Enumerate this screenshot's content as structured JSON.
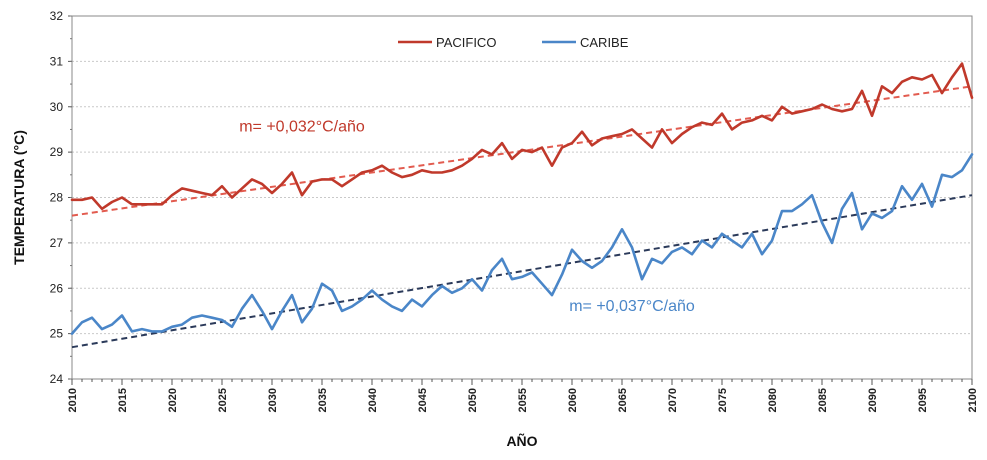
{
  "chart_data": {
    "type": "line",
    "xlabel": "AÑO",
    "ylabel": "TEMPERATURA (°C)",
    "xlim": [
      2010,
      2100
    ],
    "ylim": [
      24,
      32
    ],
    "y_ticks": [
      24,
      25,
      26,
      27,
      28,
      29,
      30,
      31,
      32
    ],
    "x_ticks": [
      2010,
      2015,
      2020,
      2025,
      2030,
      2035,
      2040,
      2045,
      2050,
      2055,
      2060,
      2065,
      2070,
      2075,
      2080,
      2085,
      2090,
      2095,
      2100
    ],
    "grid": true,
    "legend_position": "top-center",
    "series": [
      {
        "name": "PACIFICO",
        "color": "#c0392b",
        "x": [
          2010,
          2011,
          2012,
          2013,
          2014,
          2015,
          2016,
          2017,
          2018,
          2019,
          2020,
          2021,
          2022,
          2023,
          2024,
          2025,
          2026,
          2027,
          2028,
          2029,
          2030,
          2031,
          2032,
          2033,
          2034,
          2035,
          2036,
          2037,
          2038,
          2039,
          2040,
          2041,
          2042,
          2043,
          2044,
          2045,
          2046,
          2047,
          2048,
          2049,
          2050,
          2051,
          2052,
          2053,
          2054,
          2055,
          2056,
          2057,
          2058,
          2059,
          2060,
          2061,
          2062,
          2063,
          2064,
          2065,
          2066,
          2067,
          2068,
          2069,
          2070,
          2071,
          2072,
          2073,
          2074,
          2075,
          2076,
          2077,
          2078,
          2079,
          2080,
          2081,
          2082,
          2083,
          2084,
          2085,
          2086,
          2087,
          2088,
          2089,
          2090,
          2091,
          2092,
          2093,
          2094,
          2095,
          2096,
          2097,
          2098,
          2099,
          2100
        ],
        "y": [
          27.95,
          27.95,
          28.0,
          27.75,
          27.9,
          28.0,
          27.85,
          27.85,
          27.85,
          27.85,
          28.05,
          28.2,
          28.15,
          28.1,
          28.05,
          28.25,
          28.0,
          28.2,
          28.4,
          28.3,
          28.1,
          28.3,
          28.55,
          28.05,
          28.35,
          28.4,
          28.4,
          28.25,
          28.4,
          28.55,
          28.6,
          28.7,
          28.55,
          28.45,
          28.5,
          28.6,
          28.55,
          28.55,
          28.6,
          28.7,
          28.85,
          29.05,
          28.95,
          29.2,
          28.85,
          29.05,
          29.0,
          29.1,
          28.7,
          29.1,
          29.2,
          29.45,
          29.15,
          29.3,
          29.35,
          29.4,
          29.5,
          29.3,
          29.1,
          29.5,
          29.2,
          29.4,
          29.55,
          29.65,
          29.6,
          29.85,
          29.5,
          29.65,
          29.7,
          29.8,
          29.7,
          30.0,
          29.85,
          29.9,
          29.95,
          30.05,
          29.95,
          29.9,
          29.95,
          30.35,
          29.8,
          30.45,
          30.3,
          30.55,
          30.65,
          30.6,
          30.7,
          30.3,
          30.65,
          30.95,
          30.2
        ]
      },
      {
        "name": "CARIBE",
        "color": "#4a86c8",
        "x": [
          2010,
          2011,
          2012,
          2013,
          2014,
          2015,
          2016,
          2017,
          2018,
          2019,
          2020,
          2021,
          2022,
          2023,
          2024,
          2025,
          2026,
          2027,
          2028,
          2029,
          2030,
          2031,
          2032,
          2033,
          2034,
          2035,
          2036,
          2037,
          2038,
          2039,
          2040,
          2041,
          2042,
          2043,
          2044,
          2045,
          2046,
          2047,
          2048,
          2049,
          2050,
          2051,
          2052,
          2053,
          2054,
          2055,
          2056,
          2057,
          2058,
          2059,
          2060,
          2061,
          2062,
          2063,
          2064,
          2065,
          2066,
          2067,
          2068,
          2069,
          2070,
          2071,
          2072,
          2073,
          2074,
          2075,
          2076,
          2077,
          2078,
          2079,
          2080,
          2081,
          2082,
          2083,
          2084,
          2085,
          2086,
          2087,
          2088,
          2089,
          2090,
          2091,
          2092,
          2093,
          2094,
          2095,
          2096,
          2097,
          2098,
          2099,
          2100
        ],
        "y": [
          25.0,
          25.25,
          25.35,
          25.1,
          25.2,
          25.4,
          25.05,
          25.1,
          25.05,
          25.05,
          25.15,
          25.2,
          25.35,
          25.4,
          25.35,
          25.3,
          25.15,
          25.55,
          25.85,
          25.5,
          25.1,
          25.5,
          25.85,
          25.25,
          25.55,
          26.1,
          25.95,
          25.5,
          25.6,
          25.75,
          25.95,
          25.75,
          25.6,
          25.5,
          25.75,
          25.6,
          25.85,
          26.05,
          25.9,
          26.0,
          26.2,
          25.95,
          26.4,
          26.65,
          26.2,
          26.25,
          26.35,
          26.1,
          25.85,
          26.3,
          26.85,
          26.6,
          26.45,
          26.6,
          26.9,
          27.3,
          26.9,
          26.2,
          26.65,
          26.55,
          26.8,
          26.9,
          26.75,
          27.05,
          26.9,
          27.2,
          27.05,
          26.9,
          27.2,
          26.75,
          27.05,
          27.7,
          27.7,
          27.85,
          28.05,
          27.45,
          27.0,
          27.75,
          28.1,
          27.3,
          27.65,
          27.55,
          27.7,
          28.25,
          27.95,
          28.3,
          27.8,
          28.5,
          28.45,
          28.6,
          28.95
        ]
      },
      {
        "name": "",
        "color": "#e25b4f",
        "dashed": true,
        "x": [
          2010,
          2100
        ],
        "y": [
          27.6,
          30.45
        ]
      },
      {
        "name": "",
        "color": "#2b3a5a",
        "dashed": true,
        "x": [
          2010,
          2100
        ],
        "y": [
          24.7,
          28.05
        ]
      }
    ],
    "annotations": [
      {
        "text": "m= +0,032°C/año",
        "x": 2033,
        "y": 29.45,
        "color": "#c0392b"
      },
      {
        "text": "m= +0,037°C/año",
        "x": 2066,
        "y": 25.5,
        "color": "#4a86c8"
      }
    ]
  }
}
